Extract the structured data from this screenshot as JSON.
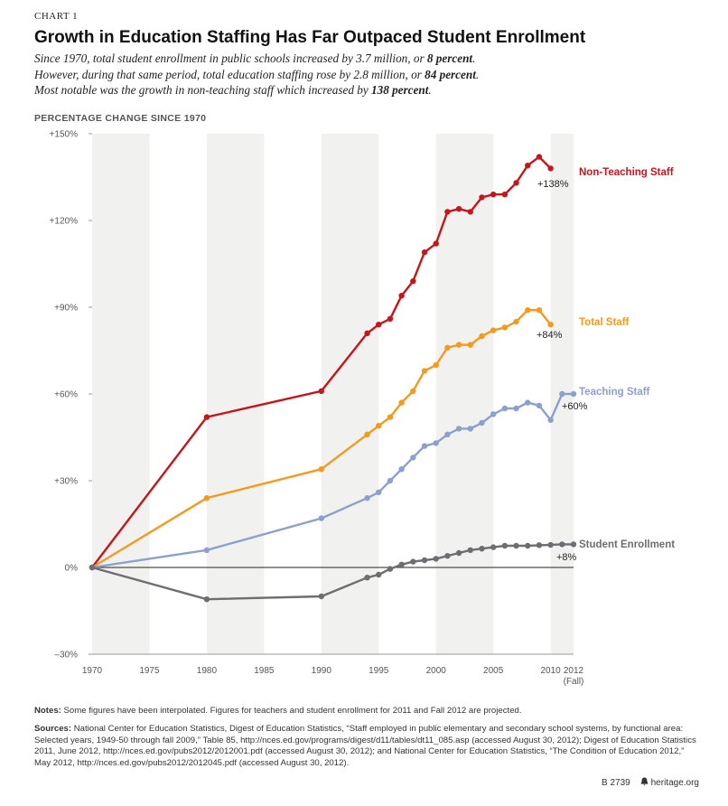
{
  "header": {
    "eyebrow": "CHART 1",
    "title": "Growth in Education Staffing Has Far Outpaced Student Enrollment",
    "subtitle_lines": [
      {
        "pre": "Since 1970, total student enrollment in public schools increased by 3.7 million, or ",
        "bold": "8 percent",
        "post": "."
      },
      {
        "pre": "However, during that same period, total education staffing rose by 2.8 million, or ",
        "bold": "84 percent",
        "post": "."
      },
      {
        "pre": "Most notable was the growth in non-teaching staff which increased by ",
        "bold": "138 percent",
        "post": "."
      }
    ]
  },
  "chart_data": {
    "type": "line",
    "title": "Growth in Education Staffing Has Far Outpaced Student Enrollment",
    "ylabel": "PERCENTAGE CHANGE SINCE 1970",
    "xlabel": "",
    "ylim": [
      -30,
      150
    ],
    "xlim": [
      1970,
      2012
    ],
    "yticks": [
      {
        "value": 150,
        "label": "+150%"
      },
      {
        "value": 120,
        "label": "+120%"
      },
      {
        "value": 90,
        "label": "+90%"
      },
      {
        "value": 60,
        "label": "+60%"
      },
      {
        "value": 30,
        "label": "+30%"
      },
      {
        "value": 0,
        "label": "0%"
      },
      {
        "value": -30,
        "label": "–30%"
      }
    ],
    "xticks": [
      {
        "value": 1970,
        "label": "1970"
      },
      {
        "value": 1975,
        "label": "1975"
      },
      {
        "value": 1980,
        "label": "1980"
      },
      {
        "value": 1985,
        "label": "1985"
      },
      {
        "value": 1990,
        "label": "1990"
      },
      {
        "value": 1995,
        "label": "1995"
      },
      {
        "value": 2000,
        "label": "2000"
      },
      {
        "value": 2005,
        "label": "2005"
      },
      {
        "value": 2010,
        "label": "2010"
      },
      {
        "value": 2012,
        "label": "2012",
        "sublabel": "(Fall)"
      }
    ],
    "series": [
      {
        "name": "Non-Teaching Staff",
        "color": "#c4161c",
        "end_label": "+138%",
        "x": [
          1970,
          1980,
          1990,
          1994,
          1995,
          1996,
          1997,
          1998,
          1999,
          2000,
          2001,
          2002,
          2003,
          2004,
          2005,
          2006,
          2007,
          2008,
          2009,
          2010
        ],
        "y": [
          0,
          52,
          61,
          81,
          84,
          86,
          94,
          99,
          109,
          112,
          123,
          124,
          123,
          128,
          129,
          129,
          133,
          139,
          142,
          138
        ]
      },
      {
        "name": "Total Staff",
        "color": "#f39a1f",
        "end_label": "+84%",
        "x": [
          1970,
          1980,
          1990,
          1994,
          1995,
          1996,
          1997,
          1998,
          1999,
          2000,
          2001,
          2002,
          2003,
          2004,
          2005,
          2006,
          2007,
          2008,
          2009,
          2010
        ],
        "y": [
          0,
          24,
          34,
          46,
          49,
          52,
          57,
          61,
          68,
          70,
          76,
          77,
          77,
          80,
          82,
          83,
          85,
          89,
          89,
          84
        ]
      },
      {
        "name": "Teaching Staff",
        "color": "#8ba0cd",
        "end_label": "+60%",
        "x": [
          1970,
          1980,
          1990,
          1994,
          1995,
          1996,
          1997,
          1998,
          1999,
          2000,
          2001,
          2002,
          2003,
          2004,
          2005,
          2006,
          2007,
          2008,
          2009,
          2010,
          2011,
          2012
        ],
        "y": [
          0,
          6,
          17,
          24,
          26,
          30,
          34,
          38,
          42,
          43,
          46,
          48,
          48,
          50,
          53,
          55,
          55,
          57,
          56,
          51,
          60,
          60
        ]
      },
      {
        "name": "Student Enrollment",
        "color": "#6d6e71",
        "end_label": "+8%",
        "x": [
          1970,
          1980,
          1990,
          1994,
          1995,
          1996,
          1997,
          1998,
          1999,
          2000,
          2001,
          2002,
          2003,
          2004,
          2005,
          2006,
          2007,
          2008,
          2009,
          2010,
          2011,
          2012
        ],
        "y": [
          0,
          -11,
          -10,
          -3.5,
          -2.5,
          -0.5,
          1,
          2,
          2.5,
          3,
          4,
          5,
          6,
          6.5,
          7,
          7.5,
          7.5,
          7.5,
          7.7,
          7.8,
          8,
          8
        ]
      }
    ]
  },
  "notes": {
    "notes_label": "Notes:",
    "notes_text": " Some figures have been interpolated. Figures for teachers and student enrollment for 2011 and Fall 2012 are projected.",
    "sources_label": "Sources:",
    "sources_text": " National Center for Education Statistics, Digest of Education Statistics, “Staff employed in public elementary and secondary school systems, by functional area: Selected years, 1949-50 through fall 2009,” Table 85, http://nces.ed.gov/programs/digest/d11/tables/dt11_085.asp (accessed August 30, 2012); Digest of Education Statistics 2011, June 2012, http://nces.ed.gov/pubs2012/2012001.pdf (accessed August 30, 2012); and National Center for Education Statistics, “The Condition of Education 2012,” May 2012, http://nces.ed.gov/pubs2012/2012045.pdf (accessed August 30, 2012)."
  },
  "footer": {
    "code": "B 2739",
    "site_icon": "bell-icon",
    "site": "heritage.org"
  }
}
